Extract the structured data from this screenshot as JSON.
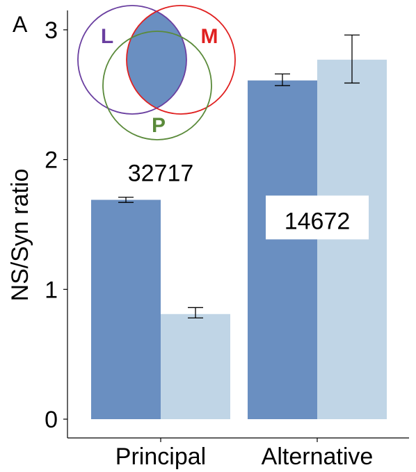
{
  "panel_label": "A",
  "chart_data": {
    "type": "bar",
    "categories": [
      "Principal",
      "Alternative"
    ],
    "series": [
      {
        "color": "#6a8fc1",
        "values": [
          1.69,
          2.61
        ],
        "err_low": [
          1.67,
          2.57
        ],
        "err_high": [
          1.71,
          2.66
        ]
      },
      {
        "color": "#c0d5e6",
        "values": [
          0.81,
          2.77
        ],
        "err_low": [
          0.78,
          2.59
        ],
        "err_high": [
          0.86,
          2.96
        ]
      }
    ],
    "ylabel": "NS/Syn ratio",
    "xlabel": "",
    "ylim": [
      0,
      3.15
    ],
    "yticks": [
      "0",
      "1",
      "2",
      "3"
    ],
    "grid": false,
    "annotations": [
      {
        "text": "32717",
        "category": "Principal",
        "y": 1.9
      },
      {
        "text": "14672",
        "category": "Alternative",
        "y": 1.53
      }
    ],
    "venn": {
      "sets": [
        {
          "label": "L",
          "color": "#6a3fa0"
        },
        {
          "label": "M",
          "color": "#e02020"
        },
        {
          "label": "P",
          "color": "#5a8a3a"
        }
      ],
      "highlight": "L∩M",
      "highlight_color": "#6a8fc1"
    }
  }
}
